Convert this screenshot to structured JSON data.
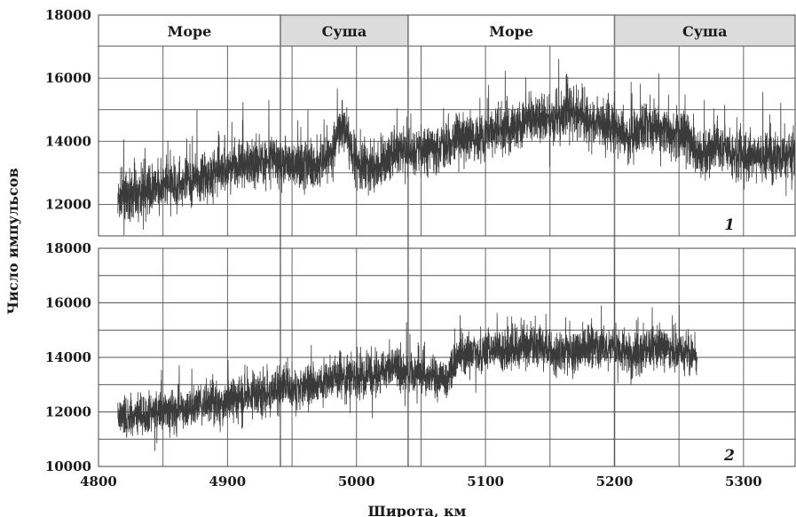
{
  "chart_data": [
    {
      "type": "line",
      "panel_label": "1",
      "xlabel": "Широта, км",
      "ylabel": "Число импульсов",
      "xlim": [
        4800,
        5340
      ],
      "ylim": [
        11000,
        18000
      ],
      "x_ticks": [
        "4800",
        "4900",
        "5000",
        "5100",
        "5200",
        "5300"
      ],
      "y_ticks": [
        "12000",
        "14000",
        "16000",
        "18000"
      ],
      "grid": true,
      "regions": [
        {
          "label": "Море",
          "from": 4800,
          "to": 4941,
          "shaded": false
        },
        {
          "label": "Суша",
          "from": 4941,
          "to": 5040,
          "shaded": true
        },
        {
          "label": "Море",
          "from": 5040,
          "to": 5200,
          "shaded": false
        },
        {
          "label": "Суша",
          "from": 5200,
          "to": 5340,
          "shaded": true
        }
      ],
      "series": [
        {
          "x": [
            4815,
            4830,
            4845,
            4860,
            4875,
            4890,
            4905,
            4920,
            4935,
            4950,
            4965,
            4980,
            4990,
            5000,
            5015,
            5030,
            5045,
            5060,
            5075,
            5090,
            5105,
            5120,
            5135,
            5150,
            5165,
            5180,
            5195,
            5210,
            5225,
            5240,
            5255,
            5265,
            5280,
            5295,
            5310,
            5325,
            5340
          ],
          "values": [
            12100,
            12300,
            12500,
            12600,
            12800,
            13000,
            13200,
            13300,
            13400,
            13300,
            13200,
            13600,
            14500,
            13400,
            13100,
            13700,
            13700,
            13800,
            14000,
            14100,
            14300,
            14400,
            14700,
            14600,
            15000,
            14600,
            14600,
            14100,
            14500,
            14300,
            14200,
            13500,
            14000,
            13400,
            13600,
            13500,
            13500
          ],
          "noise": 700
        }
      ]
    },
    {
      "type": "line",
      "panel_label": "2",
      "xlabel": "Широта, км",
      "ylabel": "Число импульсов",
      "xlim": [
        4800,
        5340
      ],
      "ylim": [
        10000,
        18000
      ],
      "x_ticks": [
        "4800",
        "4900",
        "5000",
        "5100",
        "5200",
        "5300"
      ],
      "y_ticks": [
        "10000",
        "12000",
        "14000",
        "16000",
        "18000"
      ],
      "grid": true,
      "series": [
        {
          "x": [
            4815,
            4830,
            4845,
            4860,
            4875,
            4890,
            4905,
            4920,
            4935,
            4950,
            4965,
            4980,
            4995,
            5010,
            5025,
            5040,
            5055,
            5070,
            5080,
            5095,
            5110,
            5125,
            5140,
            5155,
            5170,
            5185,
            5200,
            5215,
            5230,
            5245,
            5260,
            5264
          ],
          "values": [
            11800,
            11900,
            12000,
            12100,
            12200,
            12300,
            12400,
            12600,
            12800,
            12900,
            12900,
            13200,
            13300,
            13400,
            13600,
            13500,
            13300,
            13200,
            14100,
            14200,
            14300,
            14300,
            14400,
            14100,
            14200,
            14500,
            14300,
            14100,
            14400,
            14200,
            14300,
            14000
          ],
          "noise": 700
        }
      ]
    }
  ]
}
